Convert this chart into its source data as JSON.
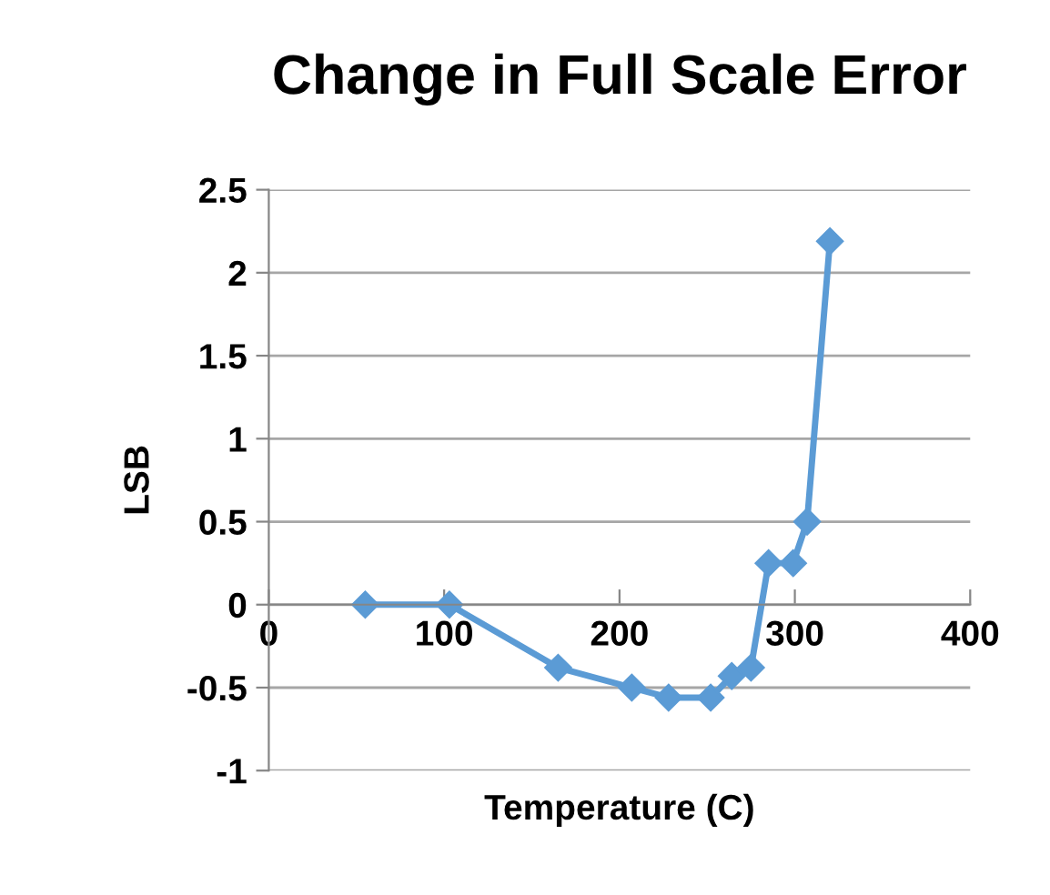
{
  "chart_data": {
    "type": "line",
    "title": "Change in Full Scale Error",
    "xlabel": "Temperature (C)",
    "ylabel": "LSB",
    "series": [
      {
        "color": "#5b9bd5",
        "x": [
          55,
          103,
          165,
          207,
          228,
          252,
          264,
          275,
          285,
          299,
          307,
          320
        ],
        "values": [
          0,
          0,
          -0.38,
          -0.5,
          -0.56,
          -0.56,
          -0.43,
          -0.38,
          0.25,
          0.25,
          0.5,
          2.19
        ]
      }
    ],
    "xlim": [
      0,
      400
    ],
    "xticks": [
      0,
      100,
      200,
      300,
      400
    ],
    "ylim": [
      -1,
      2.5
    ],
    "yticks": [
      -1,
      -0.5,
      0,
      0.5,
      1,
      1.5,
      2,
      2.5
    ],
    "grid": "y",
    "marker": "diamond",
    "line_style": "solid",
    "legend": false
  }
}
